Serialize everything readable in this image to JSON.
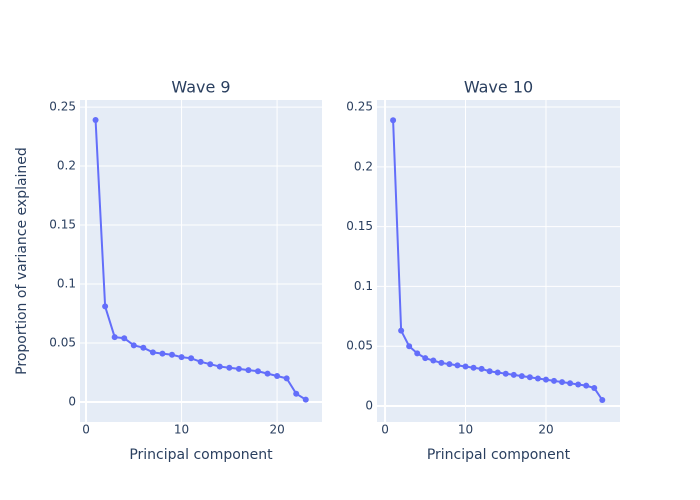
{
  "chart_data": [
    {
      "type": "line",
      "title": "Wave 9",
      "x_label": "Principal component",
      "y_label": "Proportion of variance explained",
      "color": "#636efa",
      "grid": true,
      "x": [
        1,
        2,
        3,
        4,
        5,
        6,
        7,
        8,
        9,
        10,
        11,
        12,
        13,
        14,
        15,
        16,
        17,
        18,
        19,
        20,
        21,
        22,
        23
      ],
      "values": [
        0.239,
        0.081,
        0.055,
        0.054,
        0.048,
        0.046,
        0.042,
        0.041,
        0.04,
        0.038,
        0.037,
        0.034,
        0.032,
        0.03,
        0.029,
        0.028,
        0.027,
        0.026,
        0.024,
        0.022,
        0.02,
        0.007,
        0.002
      ],
      "xlim": [
        -0.63,
        24.7
      ],
      "ylim": [
        -0.017,
        0.256
      ],
      "xticks": [
        0,
        10,
        20
      ],
      "yticks": [
        0,
        0.05,
        0.1,
        0.15,
        0.2,
        0.25
      ]
    },
    {
      "type": "line",
      "title": "Wave 10",
      "x_label": "Principal component",
      "color": "#636efa",
      "grid": true,
      "x": [
        1,
        2,
        3,
        4,
        5,
        6,
        7,
        8,
        9,
        10,
        11,
        12,
        13,
        14,
        15,
        16,
        17,
        18,
        19,
        20,
        21,
        22,
        23,
        24,
        25,
        26,
        27
      ],
      "values": [
        0.239,
        0.063,
        0.05,
        0.044,
        0.04,
        0.038,
        0.036,
        0.035,
        0.034,
        0.033,
        0.032,
        0.031,
        0.029,
        0.028,
        0.027,
        0.026,
        0.025,
        0.024,
        0.023,
        0.022,
        0.021,
        0.02,
        0.019,
        0.018,
        0.017,
        0.015,
        0.005
      ],
      "xlim": [
        -1,
        29.2
      ],
      "ylim": [
        -0.0134,
        0.2559
      ],
      "xticks": [
        0,
        10,
        20
      ],
      "yticks": [
        0,
        0.05,
        0.1,
        0.15,
        0.2,
        0.25
      ]
    }
  ]
}
